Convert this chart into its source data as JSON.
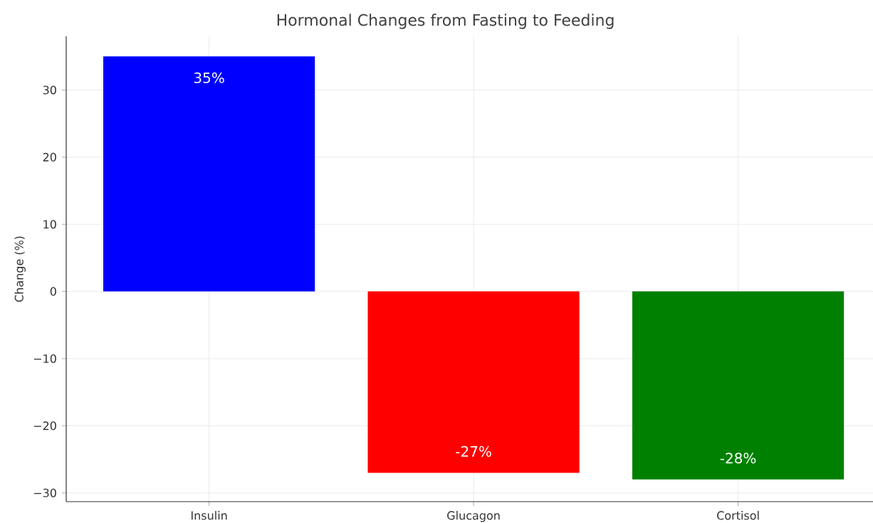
{
  "chart_data": {
    "type": "bar",
    "title": "Hormonal Changes from Fasting to Feeding",
    "ylabel": "Change (%)",
    "categories": [
      "Insulin",
      "Glucagon",
      "Cortisol"
    ],
    "values": [
      35,
      -27,
      -28
    ],
    "colors": [
      "#0000ff",
      "#ff0000",
      "#008000"
    ],
    "value_labels": [
      "35%",
      "-27%",
      "-28%"
    ],
    "ylim": [
      -31.3,
      38
    ],
    "yticks": [
      {
        "value": -30,
        "label": "−30"
      },
      {
        "value": -20,
        "label": "−20"
      },
      {
        "value": -10,
        "label": "−10"
      },
      0,
      10,
      20,
      30
    ],
    "grid": true
  }
}
